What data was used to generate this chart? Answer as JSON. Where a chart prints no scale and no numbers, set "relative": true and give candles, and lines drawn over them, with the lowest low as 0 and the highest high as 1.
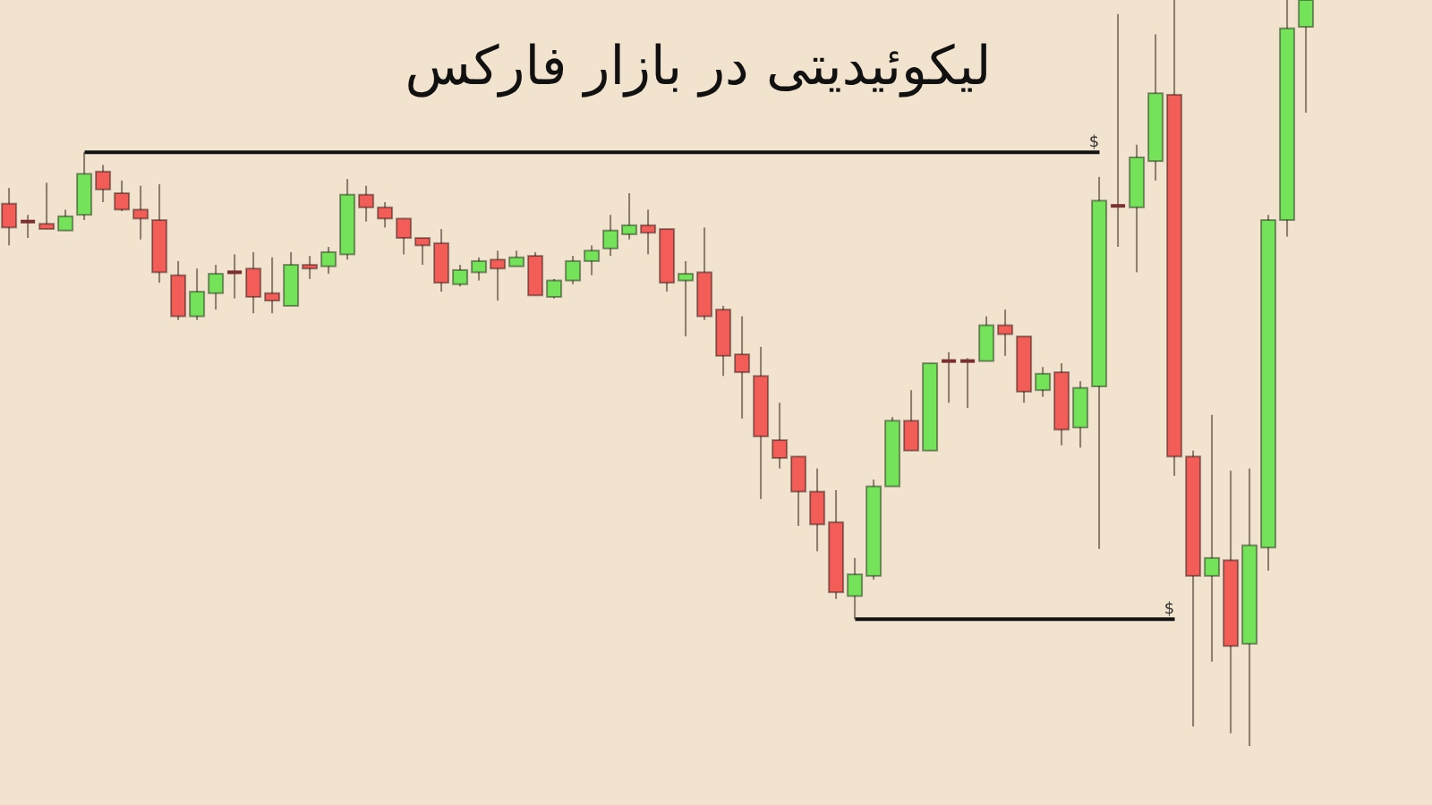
{
  "chart_data": {
    "type": "candlestick",
    "title": "لیکوئیدیتی در بازار فارکس",
    "relative": true,
    "categories": [
      null,
      null,
      null,
      null,
      null,
      null,
      null,
      null,
      null,
      null,
      null,
      null,
      null,
      null,
      null,
      null,
      null,
      null,
      null,
      null,
      null,
      null,
      null,
      null,
      null,
      null,
      null,
      null,
      null,
      null,
      null,
      null,
      null,
      null,
      null,
      null,
      null,
      null,
      null,
      null,
      null,
      null,
      null,
      null,
      null,
      null,
      null,
      null,
      null,
      null,
      null,
      null,
      null,
      null,
      null,
      null,
      null,
      null,
      null,
      null,
      null,
      null,
      null,
      null,
      null,
      null,
      null,
      null,
      null,
      null
    ],
    "colors": [
      "#f25d57",
      "#7a3030",
      "#f25d57",
      "#74e35a",
      "#74e35a",
      "#f25d57",
      "#f25d57",
      "#f25d57",
      "#f25d57",
      "#f25d57",
      "#74e35a",
      "#74e35a",
      "#7a3030",
      "#f25d57",
      "#f25d57",
      "#74e35a",
      "#f25d57",
      "#74e35a",
      "#74e35a",
      "#f25d57",
      "#f25d57",
      "#f25d57",
      "#f25d57",
      "#f25d57",
      "#74e35a",
      "#74e35a",
      "#f25d57",
      "#74e35a",
      "#f25d57",
      "#74e35a",
      "#74e35a",
      "#74e35a",
      "#74e35a",
      "#74e35a",
      "#f25d57",
      "#f25d57",
      "#74e35a",
      "#f25d57",
      "#f25d57",
      "#f25d57",
      "#f25d57",
      "#f25d57",
      "#f25d57",
      "#f25d57",
      "#f25d57",
      "#74e35a",
      "#74e35a",
      "#74e35a",
      "#f25d57",
      "#74e35a",
      "#7a3030",
      "#7a3030",
      "#74e35a",
      "#f25d57",
      "#f25d57",
      "#74e35a",
      "#f25d57",
      "#74e35a",
      "#74e35a",
      "#7a3030",
      "#74e35a",
      "#74e35a",
      "#f25d57",
      "#f25d57",
      "#74e35a",
      "#f25d57",
      "#74e35a",
      "#74e35a",
      "#74e35a",
      "#74e35a"
    ],
    "ohlc": [
      [
        0.727,
        0.748,
        0.671,
        0.695
      ],
      [
        0.703,
        0.712,
        0.681,
        0.703
      ],
      [
        0.7,
        0.755,
        0.693,
        0.693
      ],
      [
        0.691,
        0.719,
        0.691,
        0.71
      ],
      [
        0.712,
        0.796,
        0.705,
        0.767
      ],
      [
        0.77,
        0.779,
        0.729,
        0.746
      ],
      [
        0.741,
        0.758,
        0.717,
        0.719
      ],
      [
        0.719,
        0.751,
        0.679,
        0.707
      ],
      [
        0.705,
        0.753,
        0.621,
        0.635
      ],
      [
        0.631,
        0.65,
        0.571,
        0.576
      ],
      [
        0.576,
        0.64,
        0.571,
        0.609
      ],
      [
        0.607,
        0.645,
        0.585,
        0.633
      ],
      [
        0.635,
        0.659,
        0.6,
        0.635
      ],
      [
        0.64,
        0.662,
        0.58,
        0.602
      ],
      [
        0.607,
        0.655,
        0.58,
        0.597
      ],
      [
        0.59,
        0.662,
        0.59,
        0.645
      ],
      [
        0.645,
        0.657,
        0.626,
        0.64
      ],
      [
        0.643,
        0.669,
        0.633,
        0.662
      ],
      [
        0.659,
        0.76,
        0.652,
        0.739
      ],
      [
        0.739,
        0.751,
        0.703,
        0.722
      ],
      [
        0.722,
        0.729,
        0.695,
        0.707
      ],
      [
        0.707,
        0.707,
        0.659,
        0.681
      ],
      [
        0.681,
        0.681,
        0.645,
        0.671
      ],
      [
        0.674,
        0.693,
        0.609,
        0.621
      ],
      [
        0.619,
        0.645,
        0.616,
        0.638
      ],
      [
        0.635,
        0.655,
        0.624,
        0.65
      ],
      [
        0.652,
        0.664,
        0.597,
        0.64
      ],
      [
        0.643,
        0.664,
        0.643,
        0.655
      ],
      [
        0.657,
        0.662,
        0.604,
        0.604
      ],
      [
        0.602,
        0.626,
        0.6,
        0.624
      ],
      [
        0.624,
        0.657,
        0.619,
        0.65
      ],
      [
        0.65,
        0.671,
        0.631,
        0.664
      ],
      [
        0.667,
        0.712,
        0.657,
        0.691
      ],
      [
        0.686,
        0.741,
        0.679,
        0.698
      ],
      [
        0.698,
        0.719,
        0.659,
        0.688
      ],
      [
        0.693,
        0.693,
        0.609,
        0.621
      ],
      [
        0.624,
        0.65,
        0.549,
        0.633
      ],
      [
        0.635,
        0.695,
        0.571,
        0.576
      ],
      [
        0.585,
        0.59,
        0.496,
        0.523
      ],
      [
        0.525,
        0.576,
        0.439,
        0.501
      ],
      [
        0.496,
        0.535,
        0.331,
        0.415
      ],
      [
        0.41,
        0.46,
        0.372,
        0.386
      ],
      [
        0.388,
        0.388,
        0.295,
        0.341
      ],
      [
        0.341,
        0.372,
        0.261,
        0.297
      ],
      [
        0.3,
        0.343,
        0.197,
        0.206
      ],
      [
        0.201,
        0.252,
        0.17,
        0.23
      ],
      [
        0.228,
        0.357,
        0.223,
        0.348
      ],
      [
        0.348,
        0.441,
        0.348,
        0.436
      ],
      [
        0.436,
        0.477,
        0.396,
        0.396
      ],
      [
        0.396,
        0.513,
        0.396,
        0.513
      ],
      [
        0.516,
        0.528,
        0.46,
        0.516
      ],
      [
        0.516,
        0.52,
        0.453,
        0.516
      ],
      [
        0.516,
        0.576,
        0.516,
        0.564
      ],
      [
        0.564,
        0.585,
        0.523,
        0.552
      ],
      [
        0.549,
        0.549,
        0.46,
        0.475
      ],
      [
        0.477,
        0.508,
        0.468,
        0.499
      ],
      [
        0.501,
        0.513,
        0.403,
        0.424
      ],
      [
        0.427,
        0.489,
        0.4,
        0.48
      ],
      [
        0.482,
        0.763,
        0.264,
        0.731
      ],
      [
        0.724,
        0.981,
        0.669,
        0.724
      ],
      [
        0.722,
        0.806,
        0.635,
        0.789
      ],
      [
        0.784,
        0.954,
        0.758,
        0.875
      ],
      [
        0.873,
        1,
        0.362,
        0.388
      ],
      [
        0.388,
        0.396,
        0.026,
        0.228
      ],
      [
        0.228,
        0.444,
        0.113,
        0.252
      ],
      [
        0.249,
        0.369,
        0.017,
        0.134
      ],
      [
        0.137,
        0.372,
        0,
        0.269
      ],
      [
        0.266,
        0.712,
        0.235,
        0.705
      ],
      [
        0.705,
        1,
        0.683,
        0.962
      ],
      [
        0.964,
        1,
        0.849,
        1
      ]
    ],
    "ref_lines": [
      {
        "axis": "y",
        "value": 0.796,
        "label": "$",
        "color": "#111111"
      },
      {
        "axis": "y",
        "value": 0.17,
        "label": "$",
        "color": "#111111"
      }
    ]
  }
}
